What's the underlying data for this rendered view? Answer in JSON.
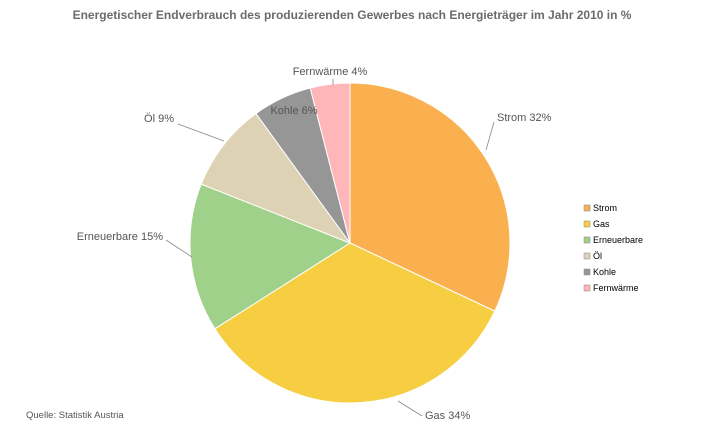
{
  "chart_data": {
    "type": "pie",
    "title": "Energetischer Endverbrauch des produzierenden Gewerbes nach Energieträger im Jahr 2010 in %",
    "slices": [
      {
        "label": "Strom",
        "value": 32,
        "data_label": "Strom 32%",
        "color": "#fbb04f"
      },
      {
        "label": "Gas",
        "value": 34,
        "data_label": "Gas 34%",
        "color": "#f7ce42"
      },
      {
        "label": "Erneuerbare",
        "value": 15,
        "data_label": "Erneuerbare 15%",
        "color": "#9fd18a"
      },
      {
        "label": "Öl",
        "value": 9,
        "data_label": "Öl 9%",
        "color": "#ded2b4"
      },
      {
        "label": "Kohle",
        "value": 6,
        "data_label": "Kohle 6%",
        "color": "#969696"
      },
      {
        "label": "Fernwärme",
        "value": 4,
        "data_label": "Fernwärme 4%",
        "color": "#ffb6b9"
      }
    ],
    "legend_position": "right",
    "start_angle": "12 o'clock",
    "direction": "clockwise"
  },
  "source": "Quelle: Statistik Austria"
}
